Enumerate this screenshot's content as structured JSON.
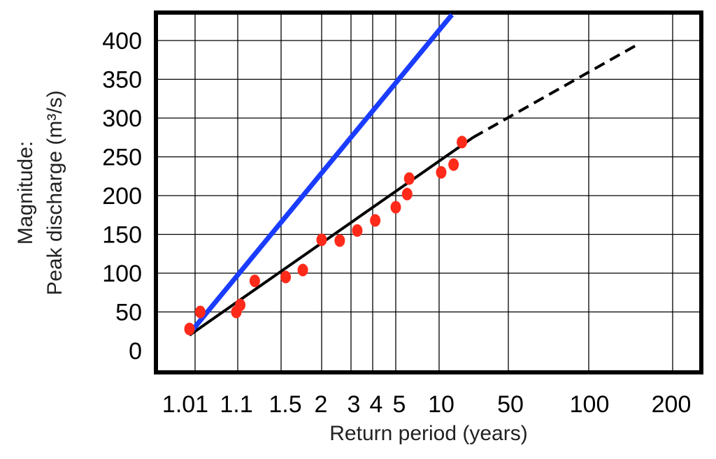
{
  "chart_data": {
    "type": "scatter",
    "title": "",
    "xlabel": "Return period (years)",
    "ylabel_line1": "Magnitude:",
    "ylabel_line2": "Peak discharge (m³/s)",
    "x_scale": "return-period probability axis",
    "x_tick_labels": [
      "1.01",
      "1.1",
      "1.5",
      "2",
      "3",
      "4",
      "5",
      "10",
      "50",
      "100",
      "200"
    ],
    "y_tick_labels": [
      "0",
      "50",
      "100",
      "150",
      "200",
      "250",
      "300",
      "350",
      "400"
    ],
    "ylim": [
      0,
      400
    ],
    "grid": true,
    "colors": {
      "points": "#ff2a1a",
      "blue_line": "#1a3cff",
      "fit_line": "#000000",
      "frame": "#000000",
      "grid": "#000000"
    },
    "series": [
      {
        "kind": "points",
        "points": [
          {
            "x": 1.01,
            "y": 28
          },
          {
            "x": 1.03,
            "y": 50
          },
          {
            "x": 1.1,
            "y": 50
          },
          {
            "x": 1.13,
            "y": 59
          },
          {
            "x": 1.25,
            "y": 90
          },
          {
            "x": 1.55,
            "y": 95
          },
          {
            "x": 1.75,
            "y": 104
          },
          {
            "x": 2.0,
            "y": 143
          },
          {
            "x": 2.6,
            "y": 142
          },
          {
            "x": 3.3,
            "y": 155
          },
          {
            "x": 4.1,
            "y": 168
          },
          {
            "x": 5.0,
            "y": 185
          },
          {
            "x": 6.0,
            "y": 202
          },
          {
            "x": 6.2,
            "y": 222
          },
          {
            "x": 10.5,
            "y": 230
          },
          {
            "x": 14,
            "y": 240
          },
          {
            "x": 17,
            "y": 269
          }
        ]
      },
      {
        "kind": "fit-line-solid",
        "points": [
          {
            "x": 1.01,
            "y": 20
          },
          {
            "x": 22,
            "y": 275
          }
        ]
      },
      {
        "kind": "fit-line-dashed",
        "points": [
          {
            "x": 22,
            "y": 275
          },
          {
            "x": 150,
            "y": 395
          }
        ]
      },
      {
        "kind": "blue-line",
        "points": [
          {
            "x": 1.01,
            "y": 22
          },
          {
            "x": 20,
            "y": 460
          }
        ]
      }
    ]
  }
}
